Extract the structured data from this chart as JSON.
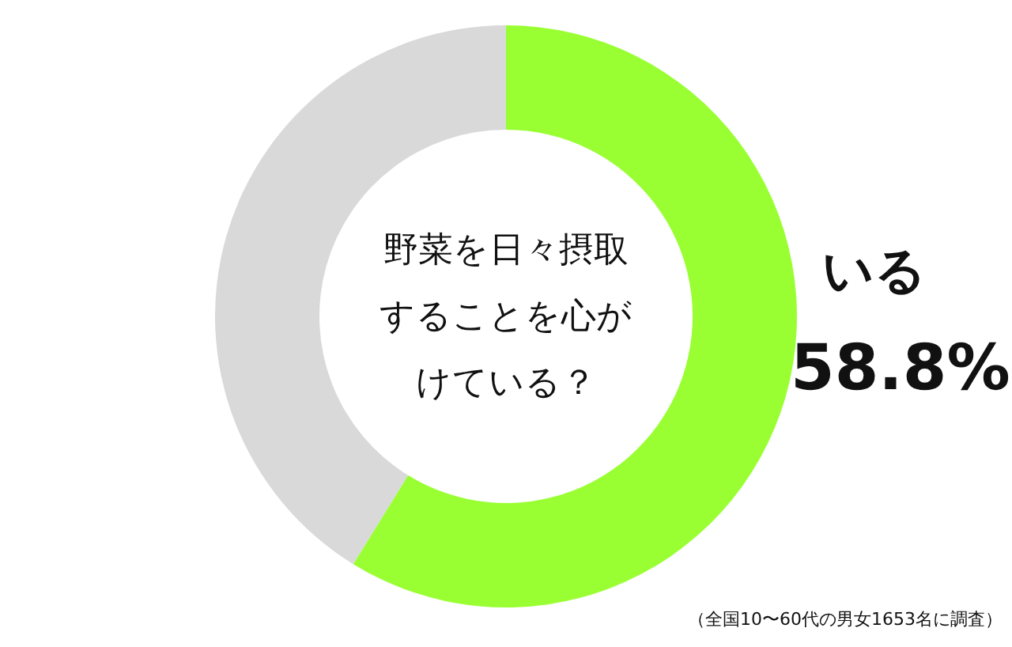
{
  "chart_data": {
    "type": "donut",
    "title": "野菜を日々摂取することを心がけている？",
    "categories": [
      "いる",
      null
    ],
    "values": [
      58.8,
      41.2
    ],
    "colors": [
      "#99ff33",
      "#d9d9d9"
    ],
    "value_labels": [
      "58.8%",
      null
    ],
    "annotations": [
      "（全国10〜60代の男女1653名に調査）"
    ]
  }
}
